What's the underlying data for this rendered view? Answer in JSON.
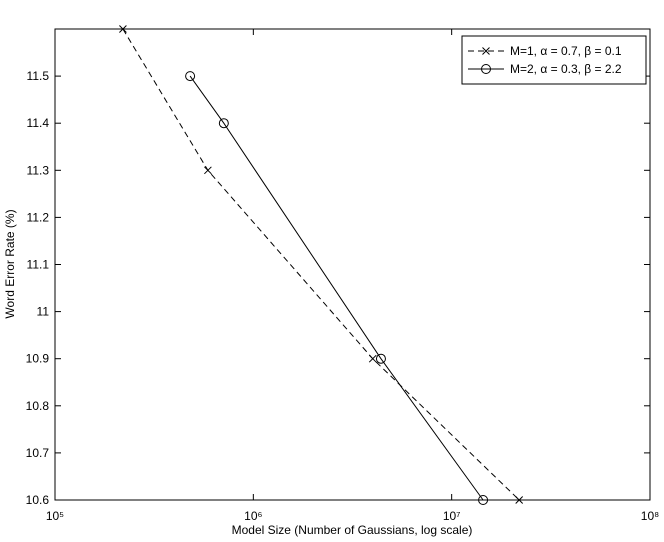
{
  "chart_data": {
    "type": "line",
    "x_label": "Model Size (Number of Gaussians, log scale)",
    "y_label": "Word Error Rate (%)",
    "log_x": true,
    "grid": false,
    "legend_position": "upper right",
    "xlim": [
      100000,
      100000000
    ],
    "xticks": [
      {
        "value": 100000,
        "label": "10⁵"
      },
      {
        "value": 1000000,
        "label": "10⁶"
      },
      {
        "value": 10000000,
        "label": "10⁷"
      },
      {
        "value": 100000000,
        "label": "10⁸"
      }
    ],
    "ylim": [
      10.6,
      11.6
    ],
    "yticks": [
      10.6,
      10.7,
      10.8,
      10.9,
      11,
      11.1,
      11.2,
      11.3,
      11.4,
      11.5
    ],
    "series": [
      {
        "name": "M=1, α = 0.7, β = 0.1",
        "color": "#000000",
        "dash": true,
        "marker": "x",
        "x": [
          220000,
          590000,
          4000000,
          21900000
        ],
        "values": [
          11.6,
          11.3,
          10.9,
          10.6
        ]
      },
      {
        "name": "M=2, α = 0.3, β = 2.2",
        "color": "#000000",
        "dash": false,
        "marker": "o",
        "x": [
          480000,
          710000,
          4400000,
          14400000
        ],
        "values": [
          11.5,
          11.4,
          10.9,
          10.6
        ]
      }
    ]
  }
}
